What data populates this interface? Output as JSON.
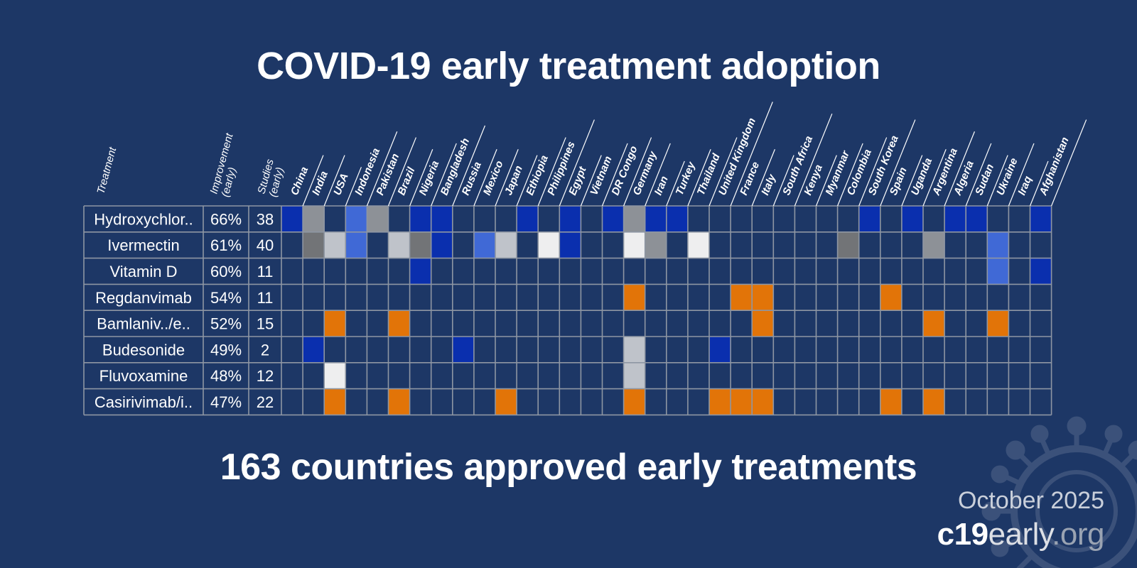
{
  "title": "COVID-19 early treatment adoption",
  "subtitle": "163 countries approved early treatments",
  "date": "October 2025",
  "site": {
    "part1": "c19",
    "part2": "early",
    "part3": ".org"
  },
  "colors": {
    "background": "#1d3766",
    "grid": "#8e96a3",
    "1": "#0a2fae",
    "2": "#4069d6",
    "3": "#8d9197",
    "4": "#727477",
    "5": "#bfc3ca",
    "6": "#eeeeef",
    "7": "#e27408"
  },
  "chart_data": {
    "type": "table",
    "headers": {
      "treatment": "Treatment",
      "improvement": [
        "Improvement",
        "(early)"
      ],
      "studies": [
        "Studies",
        "(early)"
      ]
    },
    "countries": [
      "China",
      "India",
      "USA",
      "Indonesia",
      "Pakistan",
      "Brazil",
      "Nigeria",
      "Bangladesh",
      "Russia",
      "Mexico",
      "Japan",
      "Ethiopia",
      "Philippines",
      "Egypt",
      "Vietnam",
      "DR Congo",
      "Germany",
      "Iran",
      "Turkey",
      "Thailand",
      "United Kingdom",
      "France",
      "Italy",
      "South Africa",
      "Kenya",
      "Myanmar",
      "Colombia",
      "South Korea",
      "Spain",
      "Uganda",
      "Argentina",
      "Algeria",
      "Sudan",
      "Ukraine",
      "Iraq",
      "Afghanistan"
    ],
    "treatments": [
      {
        "name": "Hydroxychlor..",
        "improvement": "66%",
        "studies": "38",
        "cells": [
          1,
          3,
          0,
          2,
          3,
          0,
          1,
          1,
          0,
          0,
          0,
          1,
          0,
          1,
          0,
          1,
          3,
          1,
          1,
          0,
          0,
          0,
          0,
          0,
          0,
          0,
          0,
          1,
          0,
          1,
          0,
          1,
          1,
          0,
          0,
          1
        ]
      },
      {
        "name": "Ivermectin",
        "improvement": "61%",
        "studies": "40",
        "cells": [
          0,
          4,
          5,
          2,
          0,
          5,
          4,
          1,
          0,
          2,
          5,
          0,
          6,
          1,
          0,
          0,
          6,
          3,
          0,
          6,
          0,
          0,
          0,
          0,
          0,
          0,
          4,
          0,
          0,
          0,
          3,
          0,
          0,
          2,
          0,
          0
        ]
      },
      {
        "name": "Vitamin D",
        "improvement": "60%",
        "studies": "11",
        "cells": [
          0,
          0,
          0,
          0,
          0,
          0,
          1,
          0,
          0,
          0,
          0,
          0,
          0,
          0,
          0,
          0,
          0,
          0,
          0,
          0,
          0,
          0,
          0,
          0,
          0,
          0,
          0,
          0,
          0,
          0,
          0,
          0,
          0,
          2,
          0,
          1
        ]
      },
      {
        "name": "Regdanvimab",
        "improvement": "54%",
        "studies": "11",
        "cells": [
          0,
          0,
          0,
          0,
          0,
          0,
          0,
          0,
          0,
          0,
          0,
          0,
          0,
          0,
          0,
          0,
          7,
          0,
          0,
          0,
          0,
          7,
          7,
          0,
          0,
          0,
          0,
          0,
          7,
          0,
          0,
          0,
          0,
          0,
          0,
          0
        ]
      },
      {
        "name": "Bamlaniv../e..",
        "improvement": "52%",
        "studies": "15",
        "cells": [
          0,
          0,
          7,
          0,
          0,
          7,
          0,
          0,
          0,
          0,
          0,
          0,
          0,
          0,
          0,
          0,
          0,
          0,
          0,
          0,
          0,
          0,
          7,
          0,
          0,
          0,
          0,
          0,
          0,
          0,
          7,
          0,
          0,
          7,
          0,
          0
        ]
      },
      {
        "name": "Budesonide",
        "improvement": "49%",
        "studies": "2",
        "cells": [
          0,
          1,
          0,
          0,
          0,
          0,
          0,
          0,
          1,
          0,
          0,
          0,
          0,
          0,
          0,
          0,
          5,
          0,
          0,
          0,
          1,
          0,
          0,
          0,
          0,
          0,
          0,
          0,
          0,
          0,
          0,
          0,
          0,
          0,
          0,
          0
        ]
      },
      {
        "name": "Fluvoxamine",
        "improvement": "48%",
        "studies": "12",
        "cells": [
          0,
          0,
          6,
          0,
          0,
          0,
          0,
          0,
          0,
          0,
          0,
          0,
          0,
          0,
          0,
          0,
          5,
          0,
          0,
          0,
          0,
          0,
          0,
          0,
          0,
          0,
          0,
          0,
          0,
          0,
          0,
          0,
          0,
          0,
          0,
          0
        ]
      },
      {
        "name": "Casirivimab/i..",
        "improvement": "47%",
        "studies": "22",
        "cells": [
          0,
          0,
          7,
          0,
          0,
          7,
          0,
          0,
          0,
          0,
          7,
          0,
          0,
          0,
          0,
          0,
          7,
          0,
          0,
          0,
          7,
          7,
          7,
          0,
          0,
          0,
          0,
          0,
          7,
          0,
          7,
          0,
          0,
          0,
          0,
          0
        ]
      }
    ]
  }
}
